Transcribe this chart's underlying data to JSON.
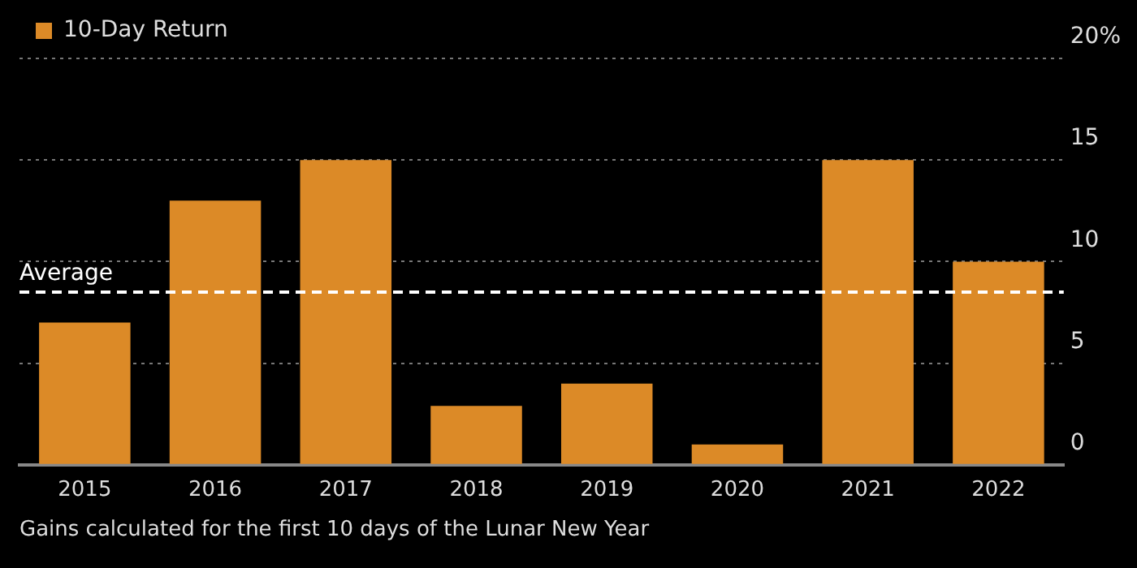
{
  "chart_data": {
    "type": "bar",
    "categories": [
      "2015",
      "2016",
      "2017",
      "2018",
      "2019",
      "2020",
      "2021",
      "2022"
    ],
    "series": [
      {
        "name": "10-Day Return",
        "color": "#dc8a27",
        "values": [
          7.0,
          13.0,
          15.0,
          2.9,
          4.0,
          1.0,
          15.0,
          10.0
        ]
      }
    ],
    "ylim": [
      0,
      20
    ],
    "yticks": [
      0,
      5,
      10,
      15,
      {
        "value": 20,
        "label": "20%"
      }
    ],
    "grid": "y",
    "legend": "top left",
    "ref_lines": [
      {
        "axis": "y",
        "value": 8.5,
        "label": "Average",
        "color": "#ffffff",
        "line_style": "dashed"
      }
    ],
    "annotations": [
      "Gains calculated for the first 10 days of the Lunar New Year"
    ]
  }
}
